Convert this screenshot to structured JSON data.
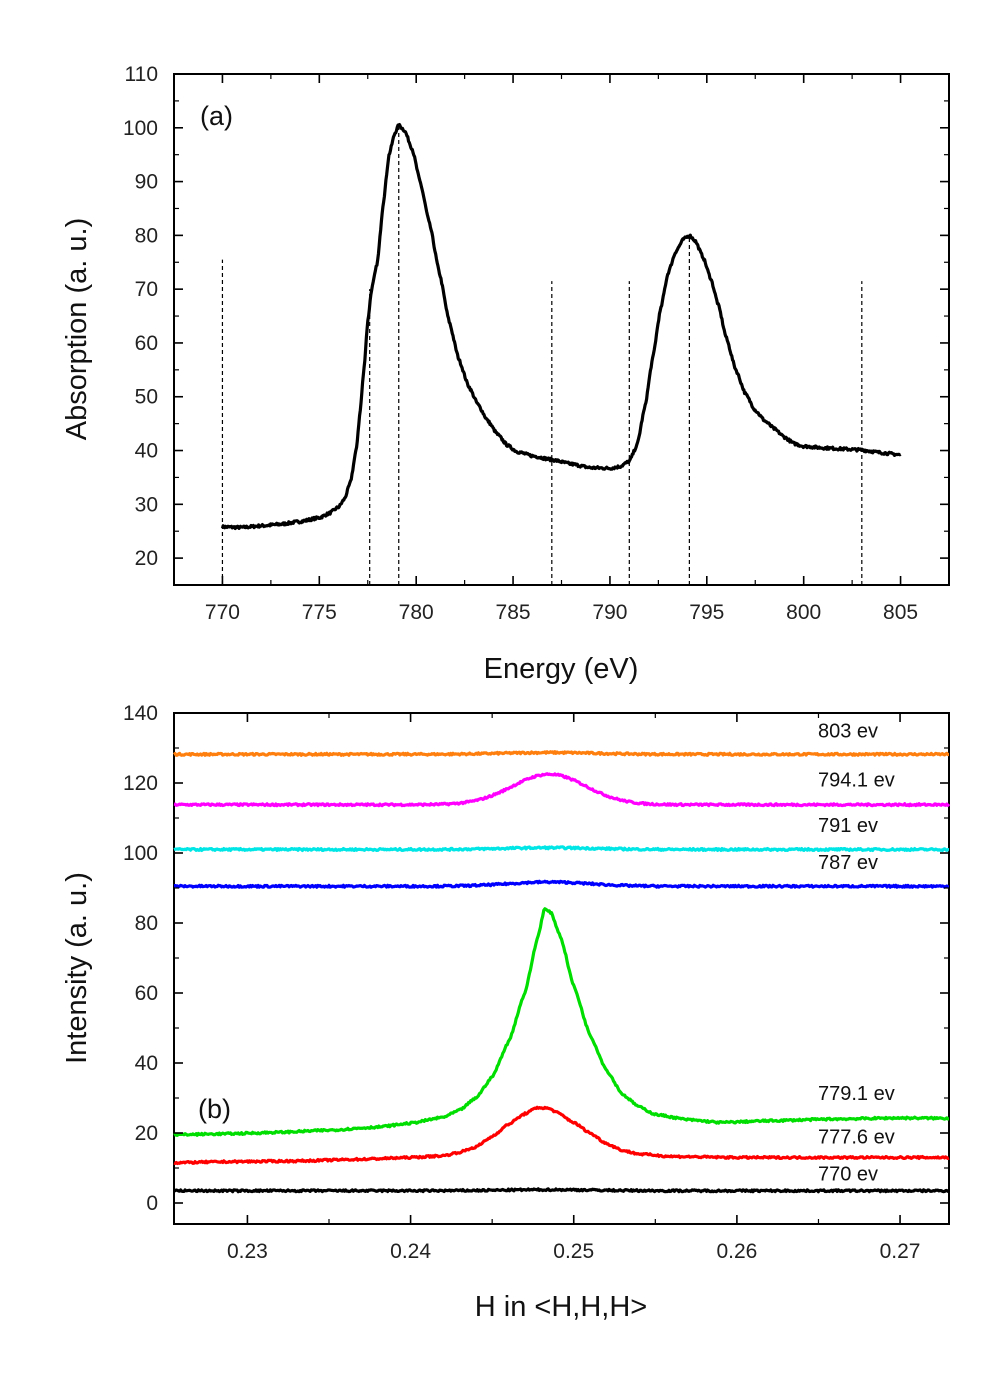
{
  "chart_data": [
    {
      "id": "a",
      "type": "line",
      "panel_label": "(a)",
      "xlabel": "Energy (eV)",
      "ylabel": "Absorption (a. u.)",
      "xlim": [
        767.5,
        807.5
      ],
      "ylim": [
        15,
        110
      ],
      "xticks": [
        770,
        775,
        780,
        785,
        790,
        795,
        800,
        805
      ],
      "yticks": [
        20,
        30,
        40,
        50,
        60,
        70,
        80,
        90,
        100,
        110
      ],
      "grid": false,
      "series": [
        {
          "color": "#000000",
          "points": [
            [
              770.0,
              25.8
            ],
            [
              771.0,
              25.7
            ],
            [
              772.0,
              26.0
            ],
            [
              773.0,
              26.3
            ],
            [
              774.0,
              26.8
            ],
            [
              775.0,
              27.5
            ],
            [
              775.5,
              28.3
            ],
            [
              776.0,
              29.5
            ],
            [
              776.3,
              31.0
            ],
            [
              776.6,
              34.0
            ],
            [
              776.9,
              40.0
            ],
            [
              777.1,
              47.0
            ],
            [
              777.3,
              55.0
            ],
            [
              777.5,
              64.0
            ],
            [
              777.7,
              70.0
            ],
            [
              778.0,
              75.0
            ],
            [
              778.3,
              86.0
            ],
            [
              778.6,
              95.0
            ],
            [
              778.9,
              99.0
            ],
            [
              779.1,
              100.5
            ],
            [
              779.4,
              99.5
            ],
            [
              779.8,
              96.0
            ],
            [
              780.2,
              90.0
            ],
            [
              780.7,
              82.0
            ],
            [
              781.2,
              73.0
            ],
            [
              781.7,
              64.0
            ],
            [
              782.2,
              57.0
            ],
            [
              782.7,
              52.0
            ],
            [
              783.2,
              48.5
            ],
            [
              783.7,
              45.5
            ],
            [
              784.2,
              43.0
            ],
            [
              784.7,
              41.0
            ],
            [
              785.2,
              39.8
            ],
            [
              786.0,
              39.0
            ],
            [
              787.0,
              38.3
            ],
            [
              788.0,
              37.5
            ],
            [
              789.0,
              36.8
            ],
            [
              790.0,
              36.7
            ],
            [
              790.5,
              37.0
            ],
            [
              791.0,
              38.0
            ],
            [
              791.4,
              41.0
            ],
            [
              791.8,
              48.0
            ],
            [
              792.2,
              57.0
            ],
            [
              792.6,
              66.0
            ],
            [
              793.0,
              73.0
            ],
            [
              793.4,
              77.0
            ],
            [
              793.8,
              79.3
            ],
            [
              794.1,
              80.0
            ],
            [
              794.4,
              79.0
            ],
            [
              794.8,
              76.0
            ],
            [
              795.2,
              72.0
            ],
            [
              795.6,
              67.0
            ],
            [
              796.0,
              61.0
            ],
            [
              796.5,
              55.0
            ],
            [
              797.0,
              50.5
            ],
            [
              797.5,
              47.5
            ],
            [
              798.0,
              45.5
            ],
            [
              798.5,
              44.0
            ],
            [
              799.0,
              42.5
            ],
            [
              799.5,
              41.3
            ],
            [
              800.0,
              40.8
            ],
            [
              801.0,
              40.5
            ],
            [
              802.0,
              40.3
            ],
            [
              803.0,
              40.1
            ],
            [
              804.0,
              39.6
            ],
            [
              805.0,
              39.2
            ]
          ]
        }
      ],
      "markers": {
        "color": "#000000",
        "style": "dashed",
        "lines": [
          {
            "x": 770.0,
            "y_top": 75.5
          },
          {
            "x": 777.6,
            "y_top": 70.0
          },
          {
            "x": 779.1,
            "y_top": 100.0
          },
          {
            "x": 787.0,
            "y_top": 71.5
          },
          {
            "x": 791.0,
            "y_top": 71.5
          },
          {
            "x": 794.1,
            "y_top": 80.0
          },
          {
            "x": 803.0,
            "y_top": 71.5
          }
        ]
      }
    },
    {
      "id": "b",
      "type": "line",
      "panel_label": "(b)",
      "xlabel": "H in <H,H,H>",
      "ylabel": "Intensity (a. u.)",
      "xlim": [
        0.2255,
        0.273
      ],
      "ylim": [
        -6,
        140
      ],
      "xticks": [
        0.23,
        0.24,
        0.25,
        0.26,
        0.27
      ],
      "xtick_labels": [
        "0.23",
        "0.24",
        "0.25",
        "0.26",
        "0.27"
      ],
      "yticks": [
        0,
        20,
        40,
        60,
        80,
        100,
        120,
        140
      ],
      "grid": false,
      "series": [
        {
          "name": "803 ev",
          "color": "#ff7f0e",
          "base": 128.2,
          "amp": 0.5,
          "center": 0.2485,
          "width": 0.004,
          "label_y": 133
        },
        {
          "name": "794.1 ev",
          "color": "#ff00ff",
          "base": 113.8,
          "amp": 8.7,
          "center": 0.2485,
          "width": 0.0032,
          "label_y": 119
        },
        {
          "name": "791 ev",
          "color": "#00e5e5",
          "base": 101.0,
          "amp": 0.5,
          "center": 0.2485,
          "width": 0.004,
          "label_y": 106
        },
        {
          "name": "787 ev",
          "color": "#0000ff",
          "base": 90.5,
          "amp": 1.2,
          "center": 0.2485,
          "width": 0.0035,
          "label_y": 95.5
        },
        {
          "name": "779.1 ev",
          "color": "#00dd00",
          "label_y": 29.5,
          "points": [
            [
              0.2255,
              19.5
            ],
            [
              0.229,
              19.8
            ],
            [
              0.232,
              20.2
            ],
            [
              0.235,
              20.8
            ],
            [
              0.238,
              21.7
            ],
            [
              0.24,
              22.8
            ],
            [
              0.242,
              24.5
            ],
            [
              0.243,
              26.5
            ],
            [
              0.244,
              30.0
            ],
            [
              0.245,
              36.0
            ],
            [
              0.246,
              46.0
            ],
            [
              0.247,
              60.0
            ],
            [
              0.2478,
              76.0
            ],
            [
              0.2482,
              84.0
            ],
            [
              0.2486,
              83.0
            ],
            [
              0.2492,
              76.0
            ],
            [
              0.25,
              62.0
            ],
            [
              0.251,
              48.0
            ],
            [
              0.252,
              38.0
            ],
            [
              0.253,
              31.0
            ],
            [
              0.254,
              27.5
            ],
            [
              0.255,
              25.3
            ],
            [
              0.257,
              23.8
            ],
            [
              0.259,
              23.0
            ],
            [
              0.262,
              23.5
            ],
            [
              0.266,
              24.0
            ],
            [
              0.27,
              24.3
            ],
            [
              0.273,
              24.2
            ]
          ]
        },
        {
          "name": "777.6 ev",
          "color": "#ff0000",
          "label_y": 17,
          "points": [
            [
              0.2255,
              11.5
            ],
            [
              0.229,
              11.8
            ],
            [
              0.233,
              12.0
            ],
            [
              0.237,
              12.5
            ],
            [
              0.24,
              13.0
            ],
            [
              0.242,
              13.5
            ],
            [
              0.243,
              14.5
            ],
            [
              0.244,
              16.0
            ],
            [
              0.245,
              19.0
            ],
            [
              0.246,
              22.5
            ],
            [
              0.247,
              25.5
            ],
            [
              0.2478,
              27.3
            ],
            [
              0.2485,
              27.0
            ],
            [
              0.249,
              25.8
            ],
            [
              0.25,
              23.0
            ],
            [
              0.251,
              20.0
            ],
            [
              0.252,
              17.0
            ],
            [
              0.253,
              15.0
            ],
            [
              0.254,
              14.0
            ],
            [
              0.256,
              13.3
            ],
            [
              0.26,
              13.0
            ],
            [
              0.265,
              13.0
            ],
            [
              0.27,
              13.0
            ],
            [
              0.273,
              13.0
            ]
          ]
        },
        {
          "name": "770 ev",
          "color": "#000000",
          "base": 3.5,
          "amp": 0.3,
          "center": 0.2485,
          "width": 0.004,
          "label_y": 6.5
        }
      ]
    }
  ]
}
